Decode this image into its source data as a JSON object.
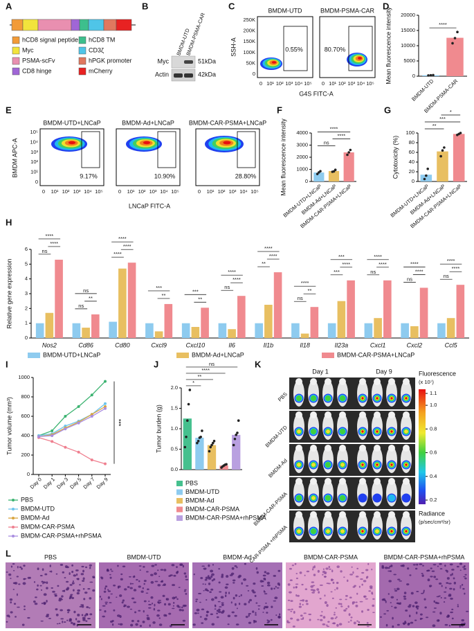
{
  "panel_labels": [
    "A",
    "B",
    "C",
    "D",
    "E",
    "F",
    "G",
    "H",
    "I",
    "J",
    "K",
    "L"
  ],
  "A": {
    "legend": [
      {
        "name": "hCD8 signal peptide",
        "color": "#f29b38"
      },
      {
        "name": "hCD8 TM",
        "color": "#3dbf8d"
      },
      {
        "name": "Myc",
        "color": "#f2e33c"
      },
      {
        "name": "CD3ζ",
        "color": "#4fc5e8"
      },
      {
        "name": "PSMA-scFv",
        "color": "#e98fb0"
      },
      {
        "name": "hPGK promoter",
        "color": "#e0785f"
      },
      {
        "name": "CD8 hinge",
        "color": "#a066d6"
      },
      {
        "name": "mCherry",
        "color": "#e82222"
      }
    ]
  },
  "B": {
    "lanes": [
      "BMDM-UTD",
      "BMDM-PSMA-CAR"
    ],
    "bands": [
      "Myc",
      "Actin"
    ],
    "sizes": [
      "51kDa",
      "42kDa"
    ]
  },
  "C": {
    "plots": [
      {
        "title": "BMDM-UTD",
        "gate": "0.55%"
      },
      {
        "title": "BMDM-PSMA-CAR",
        "gate": "80.70%"
      }
    ],
    "yticks": [
      "250K",
      "200K",
      "150K",
      "100K",
      "50K",
      "0"
    ],
    "xticks": [
      "0",
      "10¹",
      "10²",
      "10³",
      "10⁴",
      "10⁵"
    ],
    "xlabel": "G4S  FITC-A",
    "ylabel": "SSH-A"
  },
  "E": {
    "plots": [
      {
        "title": "BMDM-UTD+LNCaP",
        "gate": "9.17%"
      },
      {
        "title": "BMDM-Ad+LNCaP",
        "gate": "10.90%"
      },
      {
        "title": "BMDM-CAR-PSMA+LNCaP",
        "gate": "28.80%"
      }
    ],
    "yticks": [
      "10⁵",
      "10⁴",
      "10³",
      "10²",
      "10¹",
      "0"
    ],
    "xticks": [
      "0",
      "10¹",
      "10²",
      "10³",
      "10⁴",
      "10⁵"
    ],
    "xlabel": "LNCaP  FITC-A",
    "ylabel": "BMDM  APC-A"
  },
  "K": {
    "days": [
      "Day 1",
      "Day 9"
    ],
    "rows": [
      "PBS",
      "BMDM-UTD",
      "BMDM-Ad",
      "BMDM-CAR-PSMA",
      "BMDM-CAR-PSMA +rhPSMA"
    ],
    "colorbar": {
      "title": "Fluorescence",
      "unit": "(x 10⁷)",
      "ticks": [
        1.1,
        {
          "value": 1,
          "label": "1.0"
        },
        0.8,
        0.6,
        0.4,
        0.2
      ],
      "footer": "Radiance",
      "footer_unit": "(p/sec/cm²/sr)"
    }
  },
  "L": {
    "titles": [
      "PBS",
      "BMDM-UTD",
      "BMDM-Ad",
      "BMDM-CAR-PSMA",
      "BMDM-CAR-PSMA+rhPSMA"
    ]
  },
  "chart_data": [
    {
      "type": "bar",
      "ylabel": "Mean fluorescence intensity",
      "categories": [
        "BMDM-UTD",
        "BMDM-PSMA-CAR"
      ],
      "values": [
        300,
        12600
      ],
      "colors": [
        "#8ecbef",
        "#f08a8f"
      ],
      "points": [
        [
          250,
          300,
          350
        ],
        [
          10800,
          12500,
          14500
        ]
      ],
      "ylim": [
        0,
        20000
      ],
      "yticks": [
        0,
        5000,
        10000,
        15000,
        20000
      ],
      "significance": [
        "****"
      ]
    },
    {
      "type": "bar",
      "ylabel": "Mean fluorescence intensity",
      "categories": [
        "BMDM-UTD+LNCaP",
        "BMDM-Ad+LNCaP",
        "BMDM-CAR-PSMA+LNCaP"
      ],
      "values": [
        740,
        860,
        2400
      ],
      "colors": [
        "#8ecbef",
        "#e8bf61",
        "#f08a8f"
      ],
      "points": [
        [
          620,
          750,
          850
        ],
        [
          800,
          830,
          960
        ],
        [
          2200,
          2400,
          2600
        ]
      ],
      "ylim": [
        0,
        4000
      ],
      "yticks": [
        0,
        1000,
        2000,
        3000,
        4000
      ],
      "significance": [
        "****",
        "****",
        "ns"
      ]
    },
    {
      "type": "bar",
      "ylabel": "Cytotoxicity (%)",
      "categories": [
        "BMDM-UTD+LNCaP",
        "BMDM-Ad+LNCaP",
        "BMDM-CAR-PSMA+LNCaP"
      ],
      "values": [
        14,
        62,
        98
      ],
      "colors": [
        "#8ecbef",
        "#e8bf61",
        "#f08a8f"
      ],
      "points": [
        [
          5,
          12,
          26
        ],
        [
          52,
          64,
          70
        ],
        [
          96,
          98,
          100
        ]
      ],
      "ylim": [
        0,
        100
      ],
      "yticks": [
        0,
        20,
        40,
        60,
        80,
        100
      ],
      "significance": [
        "*",
        "***",
        "**"
      ]
    },
    {
      "type": "grouped_bar",
      "ylabel": "Relative gene expression",
      "categories": [
        "Nos2",
        "Cd86",
        "Cd80",
        "Cxcl9",
        "Cxcl10",
        "Il6",
        "Il1b",
        "Il18",
        "Il23a",
        "Cxcl1",
        "Cxcl2",
        "Ccl5"
      ],
      "series": [
        {
          "name": "BMDM-UTD+LNCaP",
          "color": "#8ecbef",
          "values": [
            1,
            1,
            1.1,
            1,
            1,
            1,
            1,
            1,
            1,
            1,
            1,
            1
          ]
        },
        {
          "name": "BMDM-Ad+LNCaP",
          "color": "#e8bf61",
          "values": [
            1.7,
            0.7,
            4.7,
            0.45,
            0.75,
            0.6,
            2.25,
            0.3,
            2.5,
            1.35,
            0.8,
            1.35
          ]
        },
        {
          "name": "BMDM-CAR-PSMA+LNCaP",
          "color": "#f08a8f",
          "values": [
            5.3,
            1.6,
            5.1,
            2.3,
            2.05,
            2.85,
            4.45,
            2.1,
            3.9,
            3.9,
            3.4,
            3.6
          ]
        }
      ],
      "ylim": [
        0,
        6
      ],
      "yticks": [
        0,
        1,
        2,
        3,
        4,
        5,
        6
      ],
      "significance": [
        [
          "****",
          "****",
          "ns"
        ],
        [
          "ns",
          "**",
          "ns"
        ],
        [
          "****",
          "****",
          "****"
        ],
        [
          "***",
          "**"
        ],
        [
          "***",
          "**"
        ],
        [
          "****",
          "****",
          "ns"
        ],
        [
          "****",
          "****",
          "**"
        ],
        [
          "****",
          "**",
          "ns"
        ],
        [
          "***",
          "****",
          "***"
        ],
        [
          "****",
          "****",
          "ns"
        ],
        [
          "****",
          "****",
          "ns"
        ],
        [
          "****",
          "****",
          "ns"
        ]
      ]
    },
    {
      "type": "line",
      "ylabel": "Tumor volume (mm³)",
      "categories": [
        "Day 0",
        "Day 1",
        "Day 3",
        "Day 5",
        "Day 7",
        "Day 9"
      ],
      "series": [
        {
          "name": "PBS",
          "color": "#3cb371",
          "values": [
            400,
            450,
            600,
            700,
            820,
            960
          ]
        },
        {
          "name": "BMDM-UTD",
          "color": "#6cc4ec",
          "values": [
            400,
            420,
            500,
            550,
            620,
            730
          ]
        },
        {
          "name": "BMDM-Ad",
          "color": "#d9a53f",
          "values": [
            390,
            410,
            480,
            540,
            620,
            700
          ]
        },
        {
          "name": "BMDM-CAR-PSMA",
          "color": "#ef7f8f",
          "values": [
            380,
            340,
            280,
            230,
            150,
            110
          ]
        },
        {
          "name": "BMDM-CAR-PSMA+rhPSMA",
          "color": "#a98de0",
          "values": [
            390,
            400,
            470,
            530,
            600,
            680
          ]
        }
      ],
      "ylim": [
        0,
        1000
      ],
      "yticks": [
        0,
        200,
        400,
        600,
        800,
        1000
      ],
      "annotation": "***"
    },
    {
      "type": "bar",
      "ylabel": "Tumor burden (g)",
      "categories": [
        "PBS",
        "BMDM-UTD",
        "BMDM-Ad",
        "BMDM-CAR-PSMA",
        "BMDM-CAR-PSMA+rhPSMA"
      ],
      "values": [
        1.25,
        0.78,
        0.6,
        0.1,
        0.85
      ],
      "colors": [
        "#45c08e",
        "#8ecbef",
        "#e8bf61",
        "#f08a8f",
        "#b9a0e0"
      ],
      "points": [
        [
          0.55,
          0.8,
          1.2,
          1.6,
          1.95
        ],
        [
          0.65,
          0.7,
          0.78,
          0.8,
          0.95
        ],
        [
          0.45,
          0.55,
          0.6,
          0.65,
          0.7
        ],
        [
          0.05,
          0.08,
          0.1,
          0.12,
          0.13
        ],
        [
          0.6,
          0.75,
          0.85,
          0.9,
          1.2
        ]
      ],
      "ylim": [
        0,
        2
      ],
      "yticks": [
        {
          "value": 0,
          "label": "0.0"
        },
        0.5,
        {
          "value": 1,
          "label": "1.0"
        },
        1.5,
        {
          "value": 2,
          "label": "2.0"
        }
      ],
      "significance": [
        "ns",
        "****",
        "**",
        "*"
      ]
    }
  ]
}
